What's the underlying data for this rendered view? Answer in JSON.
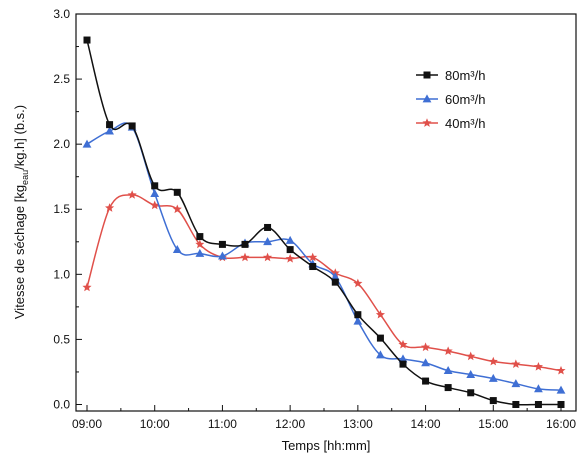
{
  "chart_data": {
    "type": "line",
    "x": [
      "09:00",
      "09:20",
      "09:40",
      "10:00",
      "10:20",
      "10:40",
      "11:00",
      "11:20",
      "11:40",
      "12:00",
      "12:20",
      "12:40",
      "13:00",
      "13:20",
      "13:40",
      "14:00",
      "14:20",
      "14:40",
      "15:00",
      "15:20",
      "15:40",
      "16:00"
    ],
    "xticks": [
      "09:00",
      "10:00",
      "11:00",
      "12:00",
      "13:00",
      "14:00",
      "15:00",
      "16:00"
    ],
    "xlabel": "Temps [hh:mm]",
    "ylabel": {
      "prefix": "Vitesse de séchage [kg",
      "sub": "eau",
      "suffix": "/kg.h] (b.s.)"
    },
    "ylim": [
      -0.05,
      3.0
    ],
    "yticks": [
      "0.0",
      "0.5",
      "1.0",
      "1.5",
      "2.0",
      "2.5",
      "3.0"
    ],
    "legend_position": "top-right",
    "series": [
      {
        "name": "80m³/h",
        "marker": "square",
        "color": "#111111",
        "values": [
          2.8,
          2.15,
          2.14,
          1.68,
          1.63,
          1.29,
          1.23,
          1.23,
          1.36,
          1.19,
          1.06,
          0.94,
          0.69,
          0.51,
          0.31,
          0.18,
          0.13,
          0.09,
          0.03,
          0.0,
          0.0,
          0.0
        ]
      },
      {
        "name": "60m³/h",
        "marker": "triangle",
        "color": "#3f6fd4",
        "values": [
          2.0,
          2.1,
          2.13,
          1.62,
          1.19,
          1.16,
          1.14,
          1.24,
          1.25,
          1.26,
          1.08,
          0.98,
          0.64,
          0.38,
          0.35,
          0.32,
          0.26,
          0.23,
          0.2,
          0.16,
          0.12,
          0.11
        ]
      },
      {
        "name": "40m³/h",
        "marker": "star",
        "color": "#e0504a",
        "values": [
          0.9,
          1.51,
          1.61,
          1.53,
          1.5,
          1.23,
          1.13,
          1.13,
          1.13,
          1.12,
          1.13,
          1.01,
          0.93,
          0.69,
          0.46,
          0.44,
          0.41,
          0.37,
          0.33,
          0.31,
          0.29,
          0.26
        ]
      }
    ]
  }
}
